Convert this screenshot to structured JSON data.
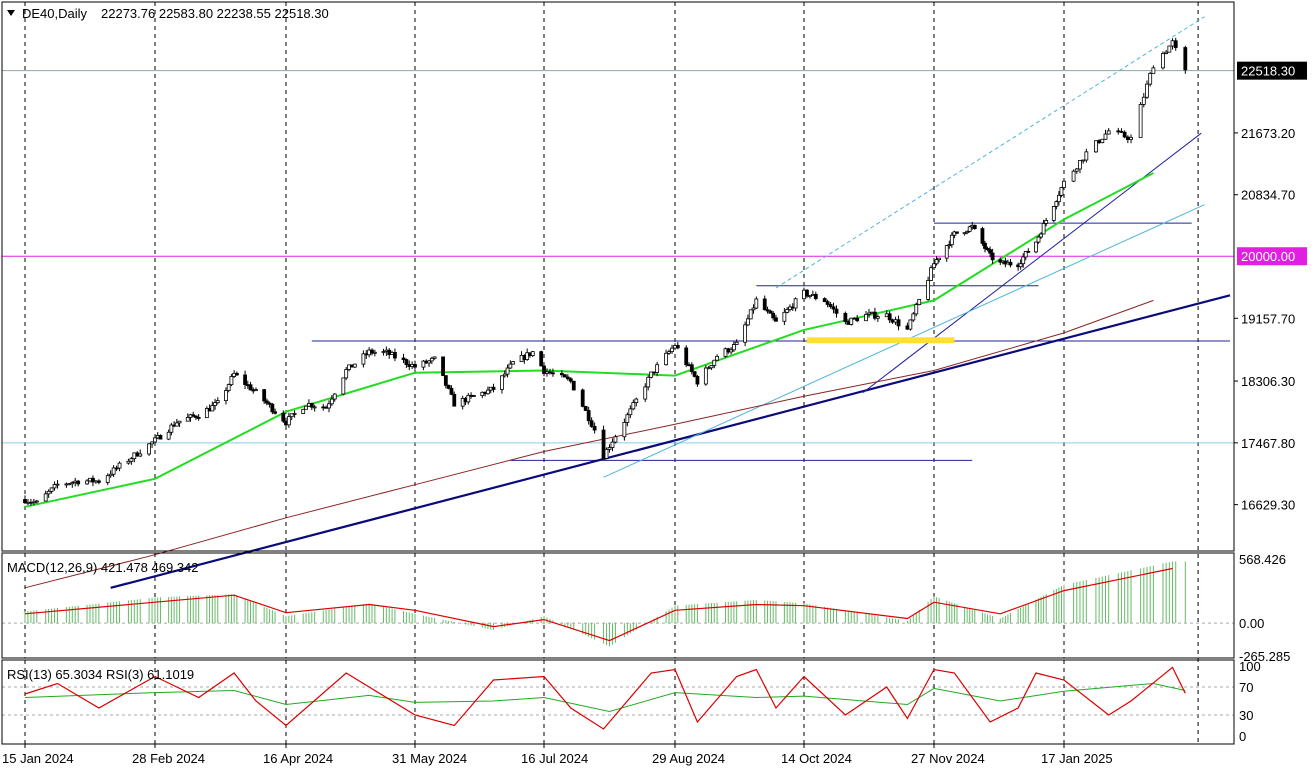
{
  "header": {
    "symbol": "DE40,Daily",
    "ohlc": "22273.76 22583.80 22238.55 22518.30"
  },
  "chart_data": [
    {
      "type": "candlestick",
      "title": "DE40,Daily 22273.76 22583.80 22238.55 22518.30",
      "symbol": "DE40",
      "timeframe": "Daily",
      "ohlc": {
        "open": 22273.76,
        "high": 22583.8,
        "low": 22238.55,
        "close": 22518.3
      },
      "x_labels": [
        "15 Jan 2024",
        "28 Feb 2024",
        "16 Apr 2024",
        "31 May 2024",
        "16 Jul 2024",
        "29 Aug 2024",
        "14 Oct 2024",
        "27 Nov 2024",
        "17 Jan 2025"
      ],
      "y_ticks": [
        16629.3,
        17467.8,
        18306.3,
        19157.7,
        20834.7,
        21673.2
      ],
      "ylim": [
        16000,
        23450
      ],
      "last_price_label": "22518.30",
      "level_label": "20000.00",
      "horizontal_levels": [
        {
          "value": 22518.3,
          "color": "#8fa5a5"
        },
        {
          "value": 20000.0,
          "color": "#e020e0"
        },
        {
          "value": 17467.8,
          "color": "#87ceeb"
        }
      ],
      "moving_averages": [
        {
          "color": "#22dd22",
          "points": [
            [
              "15 Jan 2024",
              16600
            ],
            [
              "28 Feb 2024",
              16980
            ],
            [
              "16 Apr 2024",
              17890
            ],
            [
              "31 May 2024",
              18420
            ],
            [
              "16 Jul 2024",
              18450
            ],
            [
              "29 Aug 2024",
              18380
            ],
            [
              "14 Oct 2024",
              19000
            ],
            [
              "27 Nov 2024",
              19400
            ],
            [
              "17 Jan 2025",
              20500
            ],
            [
              "2025-02-14",
              21130
            ]
          ]
        },
        {
          "color": "#8b2323",
          "points": [
            [
              "15 Jan 2024",
              15500
            ],
            [
              "28 Feb 2024",
              15950
            ],
            [
              "16 Apr 2024",
              16450
            ],
            [
              "31 May 2024",
              16900
            ],
            [
              "16 Jul 2024",
              17350
            ],
            [
              "29 Aug 2024",
              17720
            ],
            [
              "14 Oct 2024",
              18100
            ],
            [
              "27 Nov 2024",
              18450
            ],
            [
              "17 Jan 2025",
              18960
            ],
            [
              "2025-02-14",
              19400
            ]
          ]
        }
      ],
      "price_path": [
        [
          "15 Jan 2024",
          16700
        ],
        [
          "2024-01-19",
          16650
        ],
        [
          "2024-01-26",
          16900
        ],
        [
          "2024-02-02",
          16950
        ],
        [
          "2024-02-09",
          16950
        ],
        [
          "28 Feb 2024",
          17500
        ],
        [
          "2024-03-07",
          17750
        ],
        [
          "2024-03-15",
          17850
        ],
        [
          "2024-03-22",
          18000
        ],
        [
          "2024-03-28",
          18400
        ],
        [
          "2024-04-05",
          18150
        ],
        [
          "16 Apr 2024",
          17750
        ],
        [
          "2024-04-23",
          18000
        ],
        [
          "2024-04-30",
          17950
        ],
        [
          "2024-05-07",
          18450
        ],
        [
          "2024-05-15",
          18700
        ],
        [
          "2024-05-21",
          18690
        ],
        [
          "31 May 2024",
          18500
        ],
        [
          "2024-06-07",
          18600
        ],
        [
          "2024-06-14",
          18000
        ],
        [
          "2024-06-21",
          18100
        ],
        [
          "2024-06-28",
          18200
        ],
        [
          "2024-07-05",
          18550
        ],
        [
          "2024-07-12",
          18700
        ],
        [
          "16 Jul 2024",
          18450
        ],
        [
          "2024-07-25",
          18300
        ],
        [
          "2024-08-02",
          17650
        ],
        [
          "2024-08-05",
          17300
        ],
        [
          "2024-08-14",
          17900
        ],
        [
          "2024-08-21",
          18400
        ],
        [
          "29 Aug 2024",
          18800
        ],
        [
          "2024-09-06",
          18300
        ],
        [
          "2024-09-13",
          18650
        ],
        [
          "2024-09-20",
          18800
        ],
        [
          "2024-09-27",
          19400
        ],
        [
          "2024-10-04",
          19100
        ],
        [
          "14 Oct 2024",
          19500
        ],
        [
          "2024-10-21",
          19400
        ],
        [
          "2024-10-28",
          19100
        ],
        [
          "2024-11-04",
          19200
        ],
        [
          "2024-11-11",
          19200
        ],
        [
          "2024-11-18",
          19000
        ],
        [
          "2024-11-21",
          19300
        ],
        [
          "27 Nov 2024",
          19900
        ],
        [
          "2024-12-05",
          20300
        ],
        [
          "2024-12-12",
          20400
        ],
        [
          "2024-12-19",
          20000
        ],
        [
          "2024-12-23",
          19900
        ],
        [
          "2024-12-30",
          19900
        ],
        [
          "2025-01-06",
          20200
        ],
        [
          "17 Jan 2025",
          21000
        ],
        [
          "2025-01-24",
          21400
        ],
        [
          "2025-01-31",
          21700
        ],
        [
          "2025-02-07",
          21600
        ],
        [
          "2025-02-14",
          22600
        ],
        [
          "2025-02-20",
          22900
        ],
        [
          "2025-02-24",
          22500
        ]
      ]
    },
    {
      "type": "bar+line",
      "title": "MACD(12,26,9) 421.478 469.342",
      "label": "MACD(12,26,9) 421.478 469.342",
      "y_ticks": [
        "568.426",
        "0.00",
        "-265.285"
      ],
      "ylim": [
        -265.285,
        568.426
      ],
      "histogram": [
        [
          "15 Jan 2024",
          100
        ],
        [
          "28 Feb 2024",
          220
        ],
        [
          "2024-03-28",
          250
        ],
        [
          "16 Apr 2024",
          60
        ],
        [
          "2024-05-15",
          170
        ],
        [
          "31 May 2024",
          80
        ],
        [
          "2024-06-28",
          -60
        ],
        [
          "16 Jul 2024",
          60
        ],
        [
          "2024-08-07",
          -200
        ],
        [
          "29 Aug 2024",
          150
        ],
        [
          "2024-09-27",
          200
        ],
        [
          "14 Oct 2024",
          170
        ],
        [
          "2024-11-18",
          20
        ],
        [
          "27 Nov 2024",
          230
        ],
        [
          "2024-12-23",
          40
        ],
        [
          "17 Jan 2025",
          330
        ],
        [
          "2025-02-20",
          530
        ]
      ],
      "signal": [
        [
          "15 Jan 2024",
          80
        ],
        [
          "28 Feb 2024",
          180
        ],
        [
          "2024-03-28",
          240
        ],
        [
          "16 Apr 2024",
          90
        ],
        [
          "2024-05-15",
          160
        ],
        [
          "31 May 2024",
          110
        ],
        [
          "2024-06-28",
          -30
        ],
        [
          "16 Jul 2024",
          30
        ],
        [
          "2024-08-07",
          -150
        ],
        [
          "29 Aug 2024",
          110
        ],
        [
          "2024-09-27",
          160
        ],
        [
          "14 Oct 2024",
          150
        ],
        [
          "2024-11-18",
          40
        ],
        [
          "27 Nov 2024",
          180
        ],
        [
          "2024-12-23",
          80
        ],
        [
          "17 Jan 2025",
          280
        ],
        [
          "2025-02-20",
          470
        ]
      ]
    },
    {
      "type": "line",
      "title": "RSI(13) 65.3034 RSI(3) 61.1019",
      "label": "RSI(13) 65.3034 RSI(3) 61.1019",
      "y_ticks": [
        100,
        70,
        30,
        0
      ],
      "ylim": [
        0,
        100
      ],
      "rsi13": [
        [
          "15 Jan 2024",
          55
        ],
        [
          "28 Feb 2024",
          62
        ],
        [
          "2024-03-28",
          65
        ],
        [
          "16 Apr 2024",
          45
        ],
        [
          "2024-05-15",
          58
        ],
        [
          "31 May 2024",
          48
        ],
        [
          "2024-06-28",
          50
        ],
        [
          "16 Jul 2024",
          55
        ],
        [
          "2024-08-07",
          35
        ],
        [
          "29 Aug 2024",
          62
        ],
        [
          "2024-09-27",
          55
        ],
        [
          "14 Oct 2024",
          57
        ],
        [
          "2024-11-18",
          45
        ],
        [
          "27 Nov 2024",
          68
        ],
        [
          "2024-12-23",
          50
        ],
        [
          "17 Jan 2025",
          64
        ],
        [
          "2025-02-14",
          75
        ],
        [
          "2025-02-24",
          65
        ]
      ],
      "rsi3": [
        [
          "15 Jan 2024",
          60
        ],
        [
          "2024-01-26",
          75
        ],
        [
          "2024-02-09",
          40
        ],
        [
          "28 Feb 2024",
          85
        ],
        [
          "2024-03-15",
          55
        ],
        [
          "2024-03-28",
          90
        ],
        [
          "2024-04-05",
          50
        ],
        [
          "16 Apr 2024",
          15
        ],
        [
          "2024-05-07",
          90
        ],
        [
          "2024-05-15",
          70
        ],
        [
          "31 May 2024",
          30
        ],
        [
          "2024-06-14",
          15
        ],
        [
          "2024-06-28",
          80
        ],
        [
          "16 Jul 2024",
          85
        ],
        [
          "2024-07-25",
          40
        ],
        [
          "2024-08-05",
          10
        ],
        [
          "2024-08-21",
          90
        ],
        [
          "29 Aug 2024",
          95
        ],
        [
          "2024-09-06",
          20
        ],
        [
          "2024-09-20",
          85
        ],
        [
          "2024-09-27",
          95
        ],
        [
          "2024-10-04",
          40
        ],
        [
          "14 Oct 2024",
          85
        ],
        [
          "2024-10-28",
          30
        ],
        [
          "2024-11-11",
          70
        ],
        [
          "2024-11-18",
          25
        ],
        [
          "27 Nov 2024",
          95
        ],
        [
          "2024-12-05",
          90
        ],
        [
          "2024-12-19",
          20
        ],
        [
          "2024-12-30",
          40
        ],
        [
          "2025-01-06",
          90
        ],
        [
          "17 Jan 2025",
          80
        ],
        [
          "2025-01-31",
          30
        ],
        [
          "2025-02-07",
          50
        ],
        [
          "2025-02-20",
          98
        ],
        [
          "2025-02-24",
          61
        ]
      ]
    }
  ]
}
